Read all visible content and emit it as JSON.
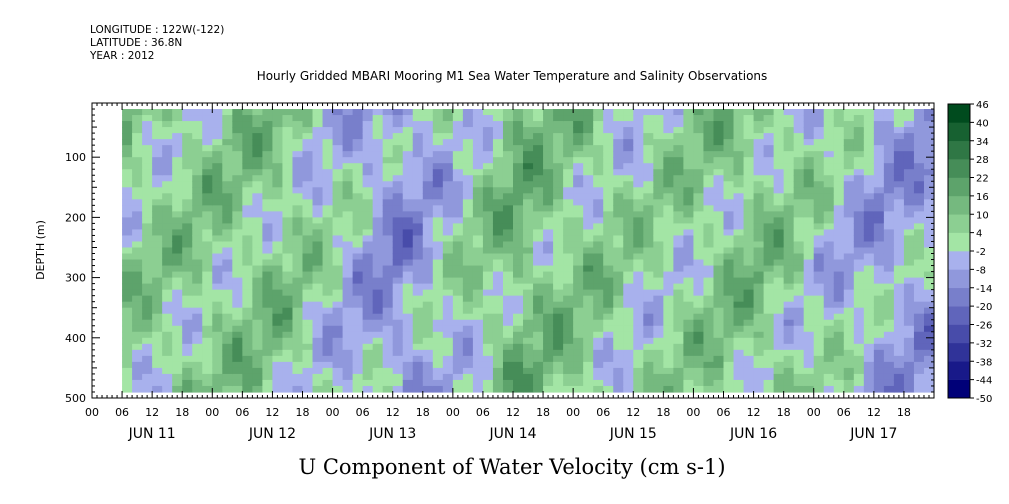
{
  "header": {
    "longitude": "LONGITUDE : 122W(-122)",
    "latitude": "LATITUDE : 36.8N",
    "year": "YEAR : 2012"
  },
  "chart_data": {
    "type": "heatmap",
    "title": "Hourly Gridded MBARI Mooring M1 Sea Water Temperature and Salinity Observations",
    "xlabel": "U Component of Water Velocity (cm s-1)",
    "ylabel": "DEPTH (m)",
    "ylim": [
      500,
      10
    ],
    "y_ticks": [
      100,
      200,
      300,
      400,
      500
    ],
    "y_tick_labels": [
      "100",
      "200",
      "300",
      "400",
      "500"
    ],
    "x_hour_ticks": [
      "00",
      "06",
      "12",
      "18",
      "00",
      "06",
      "12",
      "18",
      "00",
      "06",
      "12",
      "18",
      "00",
      "06",
      "12",
      "18",
      "00",
      "06",
      "12",
      "18",
      "00",
      "06",
      "12",
      "18",
      "00",
      "06",
      "12",
      "18"
    ],
    "x_day_labels": [
      "JUN 11",
      "JUN 12",
      "JUN 13",
      "JUN 14",
      "JUN 15",
      "JUN 16",
      "JUN 17"
    ],
    "colorbar": {
      "levels": [
        -50,
        -44,
        -38,
        -32,
        -26,
        -20,
        -14,
        -8,
        -2,
        4,
        10,
        16,
        22,
        28,
        34,
        40,
        46
      ],
      "labels": [
        "46",
        "40",
        "34",
        "28",
        "22",
        "16",
        "10",
        "4",
        "-2",
        "-8",
        "-14",
        "-20",
        "-26",
        "-32",
        "-38",
        "-44",
        "-50"
      ]
    },
    "colors": {
      "strong_negative": "#000080",
      "negative": "#3c50dc",
      "weak_negative": "#9fa8f0",
      "weak_positive": "#aaf0aa",
      "positive": "#28dc50",
      "strong_positive": "#004d1a"
    },
    "day_column_means": [
      {
        "day": "JUN 11",
        "u": 5
      },
      {
        "day": "JUN 12",
        "u": 8
      },
      {
        "day": "JUN 13",
        "u": -12
      },
      {
        "day": "JUN 14",
        "u": 12
      },
      {
        "day": "JUN 15",
        "u": 2
      },
      {
        "day": "JUN 16",
        "u": 9
      },
      {
        "day": "JUN 17",
        "u": -8
      }
    ]
  }
}
